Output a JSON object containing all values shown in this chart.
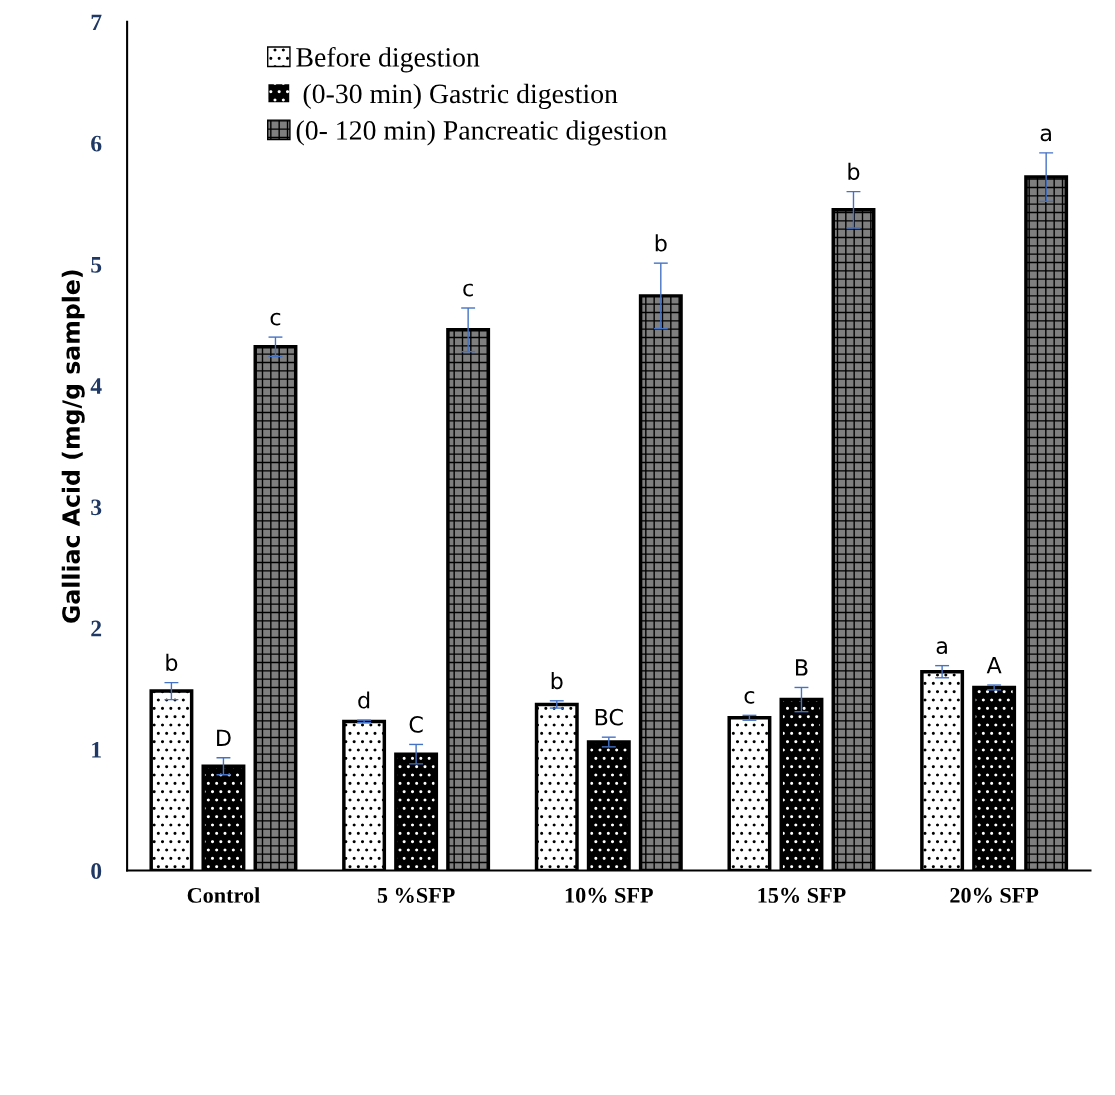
{
  "chart_data": {
    "type": "bar",
    "ylabel": "Galliac Acid (mg/g sample)",
    "categories": [
      "Control",
      "5 %SFP",
      "10% SFP",
      "15% SFP",
      "20% SFP"
    ],
    "series": [
      {
        "name": "Before digestion",
        "color": "#ffffff",
        "values": [
          1.48,
          1.23,
          1.37,
          1.26,
          1.64
        ],
        "errors": [
          0.07,
          0.01,
          0.03,
          0.02,
          0.05
        ],
        "value_labels": [
          "b",
          "d",
          "b",
          "c",
          "a"
        ]
      },
      {
        "name": " (0-30 min) Gastric digestion",
        "color": "#000000",
        "values": [
          0.86,
          0.96,
          1.06,
          1.41,
          1.51
        ],
        "errors": [
          0.07,
          0.08,
          0.04,
          0.1,
          0.02
        ],
        "value_labels": [
          "D",
          "C",
          "BC",
          "B",
          "A"
        ]
      },
      {
        "name": "(0- 120 min) Pancreatic digestion",
        "color": "#7f7f7f",
        "values": [
          4.32,
          4.46,
          4.74,
          5.45,
          5.72
        ],
        "errors": [
          0.08,
          0.18,
          0.27,
          0.15,
          0.2
        ],
        "value_labels": [
          "c",
          "c",
          "b",
          "b",
          "a"
        ]
      }
    ],
    "ylim": [
      0,
      7
    ],
    "yticks": [
      0,
      1,
      2,
      3,
      4,
      5,
      6,
      7
    ],
    "grid": false,
    "legend": "top left"
  }
}
